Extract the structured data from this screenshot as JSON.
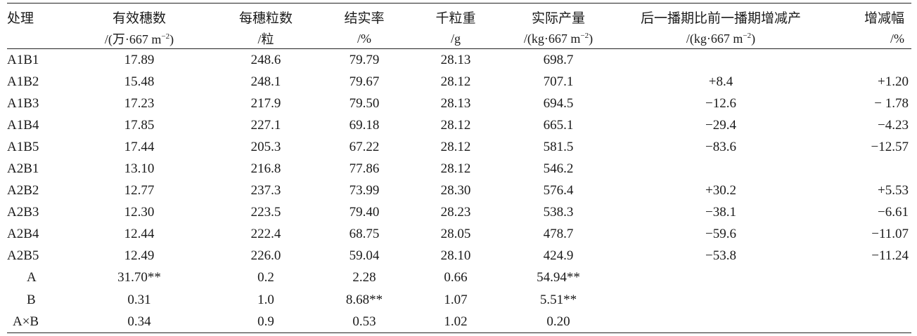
{
  "headers": {
    "row1": [
      "处理",
      "有效穗数",
      "每穗粒数",
      "结实率",
      "千粒重",
      "实际产量",
      "后一播期比前一播期增减产",
      "增减幅"
    ],
    "row2": {
      "c1_pre": "/(万·667 m",
      "c1_sup": "−2",
      "c1_post": ")",
      "c2": "/粒",
      "c3": "/%",
      "c4": "/g",
      "c5_pre": "/(kg·667 m",
      "c5_sup": "−2",
      "c5_post": ")",
      "c6_pre": "/(kg·667 m",
      "c6_sup": "−2",
      "c6_post": ")",
      "c7": "/%"
    }
  },
  "rows": [
    [
      "A1B1",
      "17.89",
      "248.6",
      "79.79",
      "28.13",
      "698.7",
      "",
      ""
    ],
    [
      "A1B2",
      "15.48",
      "248.1",
      "79.67",
      "28.12",
      "707.1",
      "+8.4",
      "+1.20"
    ],
    [
      "A1B3",
      "17.23",
      "217.9",
      "79.50",
      "28.13",
      "694.5",
      "−12.6",
      "− 1.78"
    ],
    [
      "A1B4",
      "17.85",
      "227.1",
      "69.18",
      "28.12",
      "665.1",
      "−29.4",
      "−4.23"
    ],
    [
      "A1B5",
      "17.44",
      "205.3",
      "67.22",
      "28.12",
      "581.5",
      "−83.6",
      "−12.57"
    ],
    [
      "A2B1",
      "13.10",
      "216.8",
      "77.86",
      "28.12",
      "546.2",
      "",
      ""
    ],
    [
      "A2B2",
      "12.77",
      "237.3",
      "73.99",
      "28.30",
      "576.4",
      "+30.2",
      "+5.53"
    ],
    [
      "A2B3",
      "12.30",
      "223.5",
      "79.40",
      "28.23",
      "538.3",
      "−38.1",
      "−6.61"
    ],
    [
      "A2B4",
      "12.44",
      "222.4",
      "68.75",
      "28.05",
      "478.7",
      "−59.6",
      "−11.07"
    ],
    [
      "A2B5",
      "12.49",
      "226.0",
      "59.04",
      "28.10",
      "424.9",
      "−53.8",
      "−11.24"
    ],
    [
      "A",
      "31.70**",
      "0.2",
      "2.28",
      "0.66",
      "54.94**",
      "",
      ""
    ],
    [
      "B",
      "0.31",
      "1.0",
      "8.68**",
      "1.07",
      "5.51**",
      "",
      ""
    ],
    [
      "A×B",
      "0.34",
      "0.9",
      "0.53",
      "1.02",
      "0.20",
      "",
      ""
    ]
  ]
}
